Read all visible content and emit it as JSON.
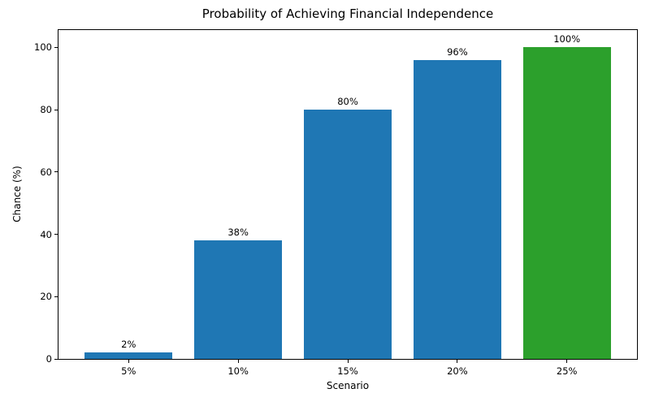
{
  "chart_data": {
    "type": "bar",
    "title": "Probability of Achieving Financial Independence",
    "xlabel": "Scenario",
    "ylabel": "Chance (%)",
    "categories": [
      "5%",
      "10%",
      "15%",
      "20%",
      "25%"
    ],
    "values": [
      2,
      38,
      80,
      96,
      100
    ],
    "bar_labels": [
      "2%",
      "38%",
      "80%",
      "96%",
      "100%"
    ],
    "bar_colors": [
      "#1f77b4",
      "#1f77b4",
      "#1f77b4",
      "#1f77b4",
      "#2ca02c"
    ],
    "yticks": [
      0,
      20,
      40,
      60,
      80,
      100
    ],
    "ylim": [
      0,
      105.6
    ],
    "xlim": [
      -0.64,
      4.64
    ],
    "bar_width": 0.8,
    "grid": false,
    "legend": "none",
    "background_color": "#ffffff",
    "spine_color": "#000000"
  }
}
